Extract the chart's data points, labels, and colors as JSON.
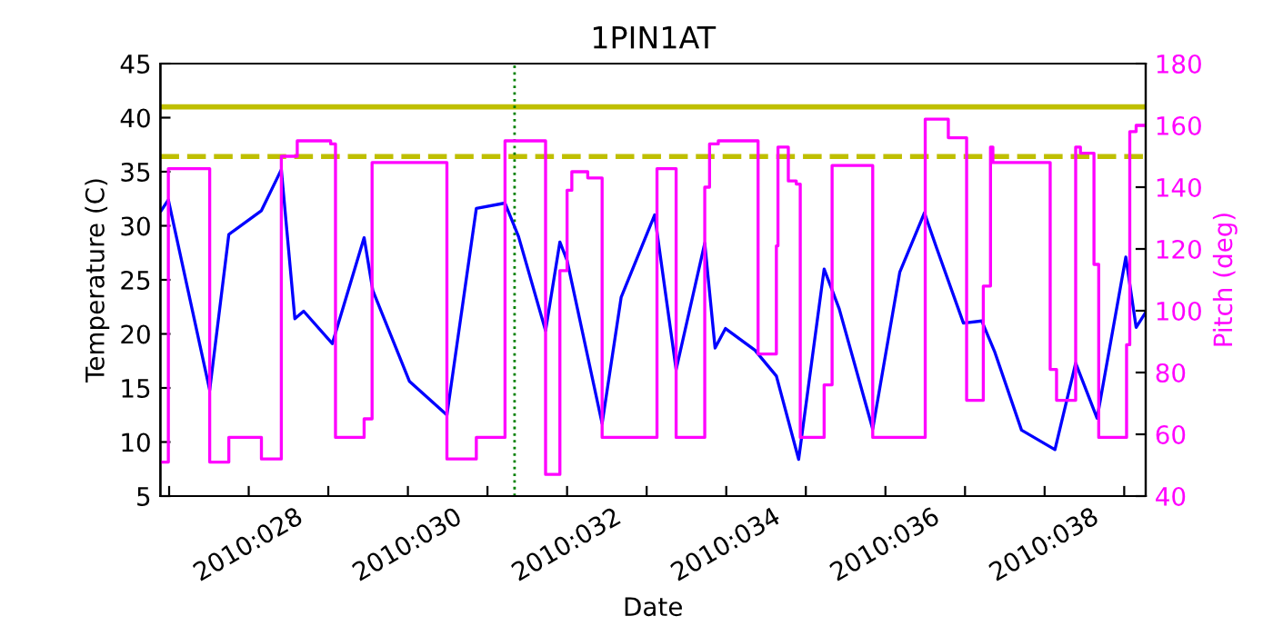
{
  "chart_data": {
    "type": "line",
    "title": "1PIN1AT",
    "xlabel": "Date",
    "ylabel": "Temperature (C)",
    "y2label": "Pitch (deg)",
    "xlim": [
      "2010-01-26T21:22",
      "2010-02-08T06:29"
    ],
    "xticks": [
      {
        "value": "2010-01-27",
        "label": null
      },
      {
        "value": "2010-01-28",
        "label": "2010:028"
      },
      {
        "value": "2010-01-29",
        "label": null
      },
      {
        "value": "2010-01-30",
        "label": "2010:030"
      },
      {
        "value": "2010-01-31",
        "label": null
      },
      {
        "value": "2010-02-01",
        "label": "2010:032"
      },
      {
        "value": "2010-02-02",
        "label": null
      },
      {
        "value": "2010-02-03",
        "label": "2010:034"
      },
      {
        "value": "2010-02-04",
        "label": null
      },
      {
        "value": "2010-02-05",
        "label": "2010:036"
      },
      {
        "value": "2010-02-06",
        "label": null
      },
      {
        "value": "2010-02-07",
        "label": "2010:038"
      },
      {
        "value": "2010-02-08",
        "label": null
      }
    ],
    "ylim": [
      5,
      45
    ],
    "yticks": [
      5,
      10,
      15,
      20,
      25,
      30,
      35,
      40,
      45
    ],
    "y2lim": [
      40,
      180
    ],
    "y2ticks": [
      40,
      60,
      80,
      100,
      120,
      140,
      160,
      180
    ],
    "grid": false,
    "legend": false,
    "series": [
      {
        "color": "#0000ff",
        "x": [
          "2010-01-26T21:36",
          "2010-01-26T23:46",
          "2010-01-27T12:14",
          "2010-01-27T18:00",
          "2010-01-28T03:50",
          "2010-01-28T09:50",
          "2010-01-28T13:55",
          "2010-01-28T16:34",
          "2010-01-29T01:12",
          "2010-01-29T10:48",
          "2010-01-29T13:26",
          "2010-01-30T00:29",
          "2010-01-30T11:46",
          "2010-01-30T20:38",
          "2010-01-31T05:17",
          "2010-01-31T09:22",
          "2010-01-31T17:31",
          "2010-01-31T21:50",
          "2010-02-01T00:00",
          "2010-02-01T10:34",
          "2010-02-01T16:19",
          "2010-02-02T02:24",
          "2010-02-02T08:53",
          "2010-02-02T17:31",
          "2010-02-02T20:38",
          "2010-02-02T23:46",
          "2010-02-03T08:38",
          "2010-02-03T15:07",
          "2010-02-03T21:50",
          "2010-02-04T05:31",
          "2010-02-04T10:05",
          "2010-02-04T20:10",
          "2010-02-05T04:19",
          "2010-02-05T11:46",
          "2010-02-05T15:22",
          "2010-02-05T23:31",
          "2010-02-06T05:02",
          "2010-02-06T08:53",
          "2010-02-06T17:02",
          "2010-02-07T03:07",
          "2010-02-07T09:22",
          "2010-02-07T15:50",
          "2010-02-08T00:29",
          "2010-02-08T03:36",
          "2010-02-08T06:29"
        ],
        "values": [
          31.4,
          32.4,
          14.8,
          29.2,
          31.4,
          35.2,
          21.4,
          22.1,
          19.1,
          28.9,
          24,
          15.6,
          12.5,
          31.6,
          32.1,
          29,
          20.3,
          28.5,
          26.8,
          11.7,
          23.4,
          31,
          16.7,
          28.4,
          18.7,
          20.5,
          18.5,
          16.1,
          8.4,
          26,
          22.3,
          11.2,
          25.7,
          31.2,
          28,
          21,
          21.2,
          18.4,
          11.1,
          9.3,
          17.3,
          12.2,
          27.1,
          20.6,
          22
        ]
      },
      {
        "type": "step",
        "axis": "y2",
        "color": "#ff00ff",
        "x": [
          "2010-01-26T21:36",
          "2010-01-26T23:46",
          "2010-01-27T12:14",
          "2010-01-27T18:00",
          "2010-01-28T03:50",
          "2010-01-28T09:50",
          "2010-01-28T14:38",
          "2010-01-29T00:43",
          "2010-01-29T02:10",
          "2010-01-29T10:48",
          "2010-01-29T13:12",
          "2010-01-30T11:46",
          "2010-01-30T20:38",
          "2010-01-31T05:17",
          "2010-01-31T17:31",
          "2010-01-31T21:50",
          "2010-02-01T00:00",
          "2010-02-01T01:26",
          "2010-02-01T06:14",
          "2010-02-01T10:34",
          "2010-02-02T03:07",
          "2010-02-02T08:53",
          "2010-02-02T17:31",
          "2010-02-02T18:58",
          "2010-02-02T21:36",
          "2010-02-03T09:36",
          "2010-02-03T15:07",
          "2010-02-03T15:36",
          "2010-02-03T18:43",
          "2010-02-03T21:07",
          "2010-02-03T22:19",
          "2010-02-04T05:31",
          "2010-02-04T07:55",
          "2010-02-04T20:10",
          "2010-02-05T12:00",
          "2010-02-05T18:58",
          "2010-02-06T00:29",
          "2010-02-06T05:31",
          "2010-02-06T07:41",
          "2010-02-06T08:24",
          "2010-02-07T01:41",
          "2010-02-07T03:36",
          "2010-02-07T09:22",
          "2010-02-07T10:48",
          "2010-02-07T14:53",
          "2010-02-07T16:19",
          "2010-02-08T00:43",
          "2010-02-08T01:41",
          "2010-02-08T03:36",
          "2010-02-08T06:29"
        ],
        "values": [
          51,
          146,
          51,
          59,
          52,
          150,
          155,
          154,
          59,
          65,
          148,
          52,
          59,
          155,
          47,
          113,
          139,
          145,
          143,
          59,
          146,
          59,
          140,
          154,
          155,
          86,
          121,
          153,
          142,
          141,
          59,
          76,
          147,
          59,
          162,
          156,
          71,
          108,
          153,
          148,
          81,
          71,
          153,
          151,
          115,
          59,
          89,
          158,
          160,
          160
        ]
      }
    ],
    "ref_lines": [
      {
        "axis": "y",
        "value": 41,
        "color": "#bfbf00",
        "line_style": "solid"
      },
      {
        "axis": "y",
        "value": 36.4,
        "color": "#bfbf00",
        "line_style": "dashed"
      },
      {
        "axis": "x",
        "value": "2010-01-31T08:10",
        "color": "#008000",
        "line_style": "dotted"
      }
    ]
  }
}
